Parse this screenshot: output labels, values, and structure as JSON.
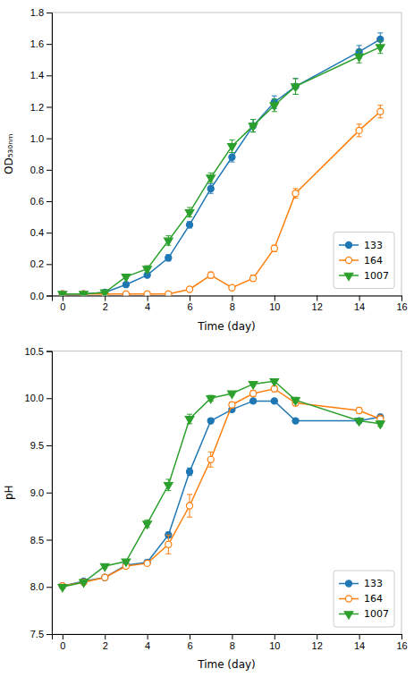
{
  "chart_data": [
    {
      "type": "line",
      "xlabel": "Time (day)",
      "ylabel": "OD₅₃₀ₙₘ",
      "x": [
        0,
        1,
        2,
        3,
        4,
        5,
        6,
        7,
        8,
        9,
        10,
        11,
        14,
        15
      ],
      "series": [
        {
          "name": "133",
          "marker": "circle",
          "values": [
            0.01,
            0.01,
            0.02,
            0.07,
            0.13,
            0.24,
            0.45,
            0.68,
            0.88,
            1.08,
            1.23,
            1.33,
            1.55,
            1.63
          ],
          "errors": [
            0.005,
            0.005,
            0.005,
            0.01,
            0.01,
            0.02,
            0.02,
            0.03,
            0.03,
            0.04,
            0.04,
            0.05,
            0.04,
            0.04
          ]
        },
        {
          "name": "164",
          "marker": "open-circle",
          "values": [
            0.01,
            0.01,
            0.01,
            0.01,
            0.01,
            0.01,
            0.04,
            0.13,
            0.05,
            0.11,
            0.3,
            0.65,
            1.05,
            1.17
          ],
          "errors": [
            0.005,
            0.005,
            0.005,
            0.005,
            0.005,
            0.005,
            0.01,
            0.02,
            0.01,
            0.02,
            0.02,
            0.03,
            0.04,
            0.04
          ]
        },
        {
          "name": "1007",
          "marker": "triangle-down",
          "values": [
            0.01,
            0.01,
            0.02,
            0.12,
            0.17,
            0.35,
            0.53,
            0.75,
            0.95,
            1.08,
            1.21,
            1.33,
            1.52,
            1.58
          ],
          "errors": [
            0.005,
            0.005,
            0.01,
            0.01,
            0.02,
            0.03,
            0.03,
            0.03,
            0.04,
            0.04,
            0.04,
            0.05,
            0.04,
            0.04
          ]
        }
      ],
      "xlim": [
        -0.5,
        16
      ],
      "xticks": [
        0,
        2,
        4,
        6,
        8,
        10,
        12,
        14,
        16
      ],
      "ylim": [
        0,
        1.8
      ],
      "yticks": [
        {
          "value": 0,
          "label": "0.0"
        },
        0.2,
        0.4,
        0.6,
        0.8,
        {
          "value": 1,
          "label": "1.0"
        },
        1.2,
        1.4,
        1.6,
        1.8
      ],
      "legend": "lower right",
      "grid": false
    },
    {
      "type": "line",
      "xlabel": "Time (day)",
      "ylabel": "pH",
      "x": [
        0,
        1,
        2,
        3,
        4,
        5,
        6,
        7,
        8,
        9,
        10,
        11,
        14,
        15
      ],
      "series": [
        {
          "name": "133",
          "marker": "circle",
          "values": [
            8.01,
            8.06,
            8.1,
            8.23,
            8.26,
            8.55,
            9.22,
            9.76,
            9.88,
            9.97,
            9.97,
            9.76,
            9.76,
            9.8
          ],
          "errors": [
            0.01,
            0.01,
            0.01,
            0.01,
            0.02,
            0.03,
            0.04,
            0.02,
            0.02,
            0.02,
            0.02,
            0.02,
            0.02,
            0.03
          ]
        },
        {
          "name": "164",
          "marker": "open-circle",
          "values": [
            8.01,
            8.05,
            8.1,
            8.22,
            8.25,
            8.45,
            8.86,
            9.35,
            9.93,
            10.05,
            10.1,
            9.95,
            9.87,
            9.78
          ],
          "errors": [
            0.01,
            0.01,
            0.01,
            0.01,
            0.02,
            0.1,
            0.12,
            0.08,
            0.03,
            0.03,
            0.03,
            0.03,
            0.03,
            0.04
          ]
        },
        {
          "name": "1007",
          "marker": "triangle-down",
          "values": [
            8.0,
            8.05,
            8.22,
            8.27,
            8.67,
            9.08,
            9.78,
            10.0,
            10.05,
            10.15,
            10.18,
            9.98,
            9.76,
            9.73
          ],
          "errors": [
            0.01,
            0.01,
            0.02,
            0.02,
            0.04,
            0.06,
            0.05,
            0.03,
            0.02,
            0.02,
            0.02,
            0.03,
            0.02,
            0.03
          ]
        }
      ],
      "xlim": [
        -0.5,
        16
      ],
      "xticks": [
        0,
        2,
        4,
        6,
        8,
        10,
        12,
        14,
        16
      ],
      "ylim": [
        7.5,
        10.5
      ],
      "yticks": [
        7.5,
        {
          "value": 8,
          "label": "8.0"
        },
        8.5,
        {
          "value": 9,
          "label": "9.0"
        },
        9.5,
        {
          "value": 10,
          "label": "10.0"
        },
        10.5
      ],
      "legend": "lower right",
      "grid": false
    }
  ]
}
